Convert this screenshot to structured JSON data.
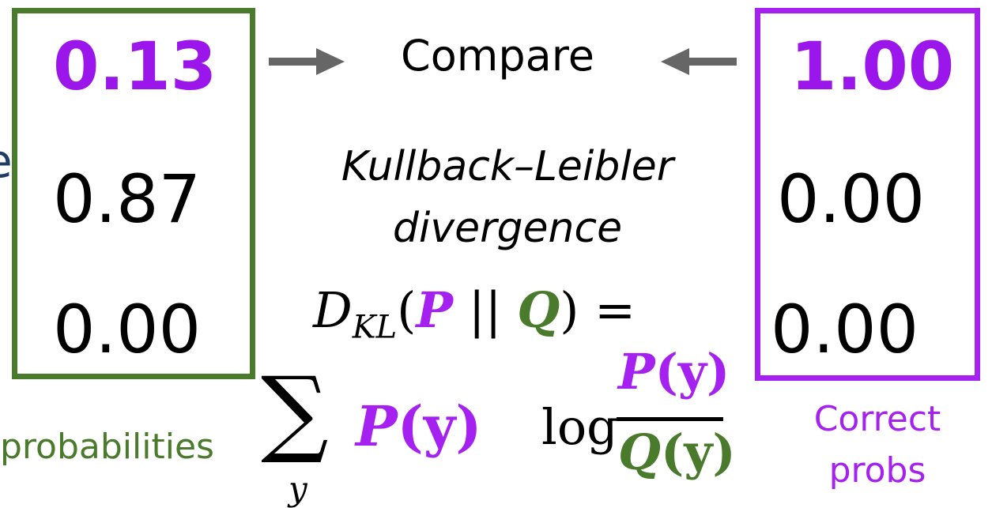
{
  "predicted": {
    "values": [
      "0.13",
      "0.87",
      "0.00"
    ],
    "label": "probabilities",
    "left_edge_glyph": "e"
  },
  "correct": {
    "values": [
      "1.00",
      "0.00",
      "0.00"
    ],
    "label_line1": "Correct",
    "label_line2": "probs"
  },
  "compare_label": "Compare",
  "divergence": {
    "line1": "Kullback–Leibler",
    "line2": "divergence"
  },
  "formula": {
    "D": "D",
    "sub": "KL",
    "open": "(",
    "P": "P",
    "bars": "||",
    "Q": "Q",
    "close_eq": ") =",
    "sum": "∑",
    "sum_index": "y",
    "term_P": "P",
    "term_y": "(y)",
    "log": "log",
    "num_P": "P",
    "num_y": "(y)",
    "den_Q": "Q",
    "den_y": "(y)"
  },
  "colors": {
    "green": "#4a7a2b",
    "purple": "#a421f0",
    "arrow": "#666666"
  }
}
